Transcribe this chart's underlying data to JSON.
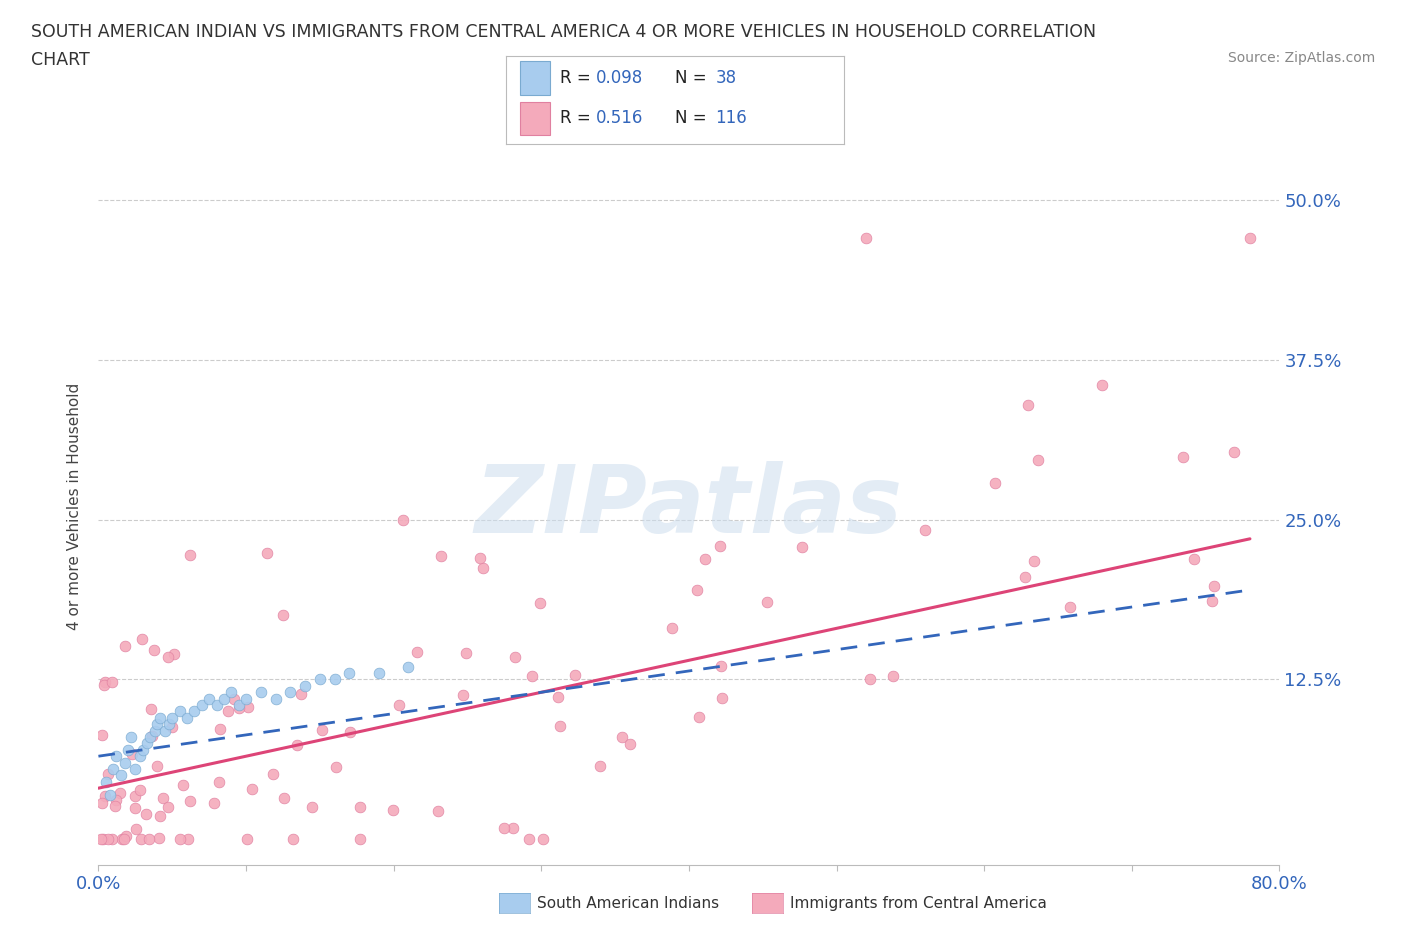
{
  "title_line1": "SOUTH AMERICAN INDIAN VS IMMIGRANTS FROM CENTRAL AMERICA 4 OR MORE VEHICLES IN HOUSEHOLD CORRELATION",
  "title_line2": "CHART",
  "source_text": "Source: ZipAtlas.com",
  "ylabel": "4 or more Vehicles in Household",
  "xlim": [
    0.0,
    0.8
  ],
  "ylim": [
    -0.02,
    0.54
  ],
  "ytick_vals": [
    0.125,
    0.25,
    0.375,
    0.5
  ],
  "ytick_labs": [
    "12.5%",
    "25.0%",
    "37.5%",
    "50.0%"
  ],
  "series1_color": "#a8ccee",
  "series2_color": "#f4aabb",
  "series1_edge": "#7aaad0",
  "series2_edge": "#e080a0",
  "trendline1_color": "#3366bb",
  "trendline2_color": "#dd4477",
  "trendline1_dash": "--",
  "trendline2_dash": "-",
  "R1": 0.098,
  "N1": 38,
  "R2": 0.516,
  "N2": 116,
  "watermark_text": "ZIPatlas",
  "series1_name": "South American Indians",
  "series2_name": "Immigrants from Central America",
  "legend_R_color": "#3366bb",
  "legend_N_color": "#3366bb",
  "title_color": "#333333",
  "source_color": "#888888",
  "ytick_color": "#3366bb",
  "xtick_color": "#3366bb",
  "grid_color": "#cccccc"
}
